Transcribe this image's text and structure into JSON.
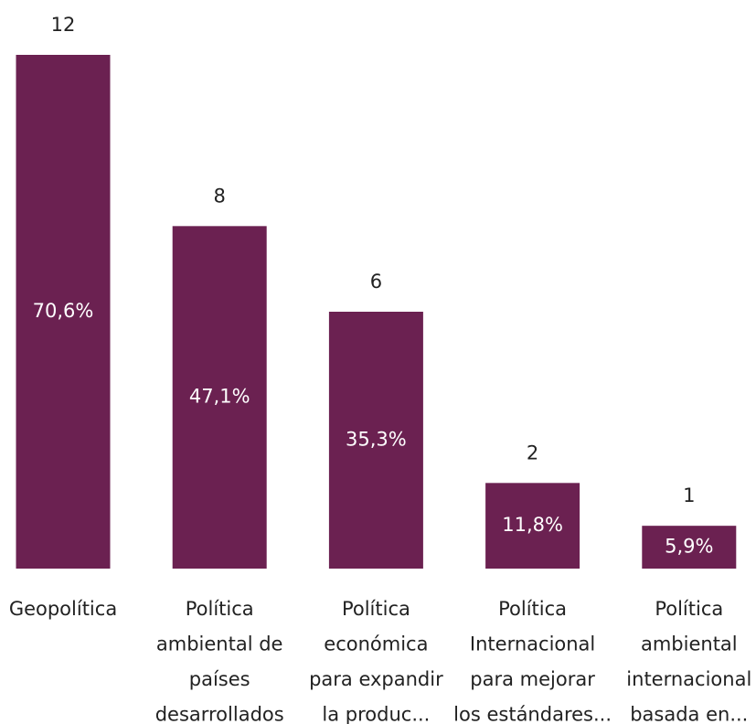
{
  "chart_data": {
    "type": "bar",
    "categories": [
      [
        "Geopolítica"
      ],
      [
        "Política",
        "ambiental de",
        "países",
        "desarrollados"
      ],
      [
        "Política",
        "económica",
        "para expandir",
        "la produc..."
      ],
      [
        "Política",
        "Internacional",
        "para mejorar",
        "los estándares..."
      ],
      [
        "Política",
        "ambiental",
        "internacional",
        "basada en..."
      ]
    ],
    "values": [
      12,
      8,
      6,
      2,
      1
    ],
    "shares": [
      70.6,
      47.1,
      35.3,
      11.8,
      5.9
    ],
    "share_labels": [
      "70,6%",
      "47,1%",
      "35,3%",
      "11,8%",
      "5,9%"
    ],
    "color": "#6b2151"
  }
}
